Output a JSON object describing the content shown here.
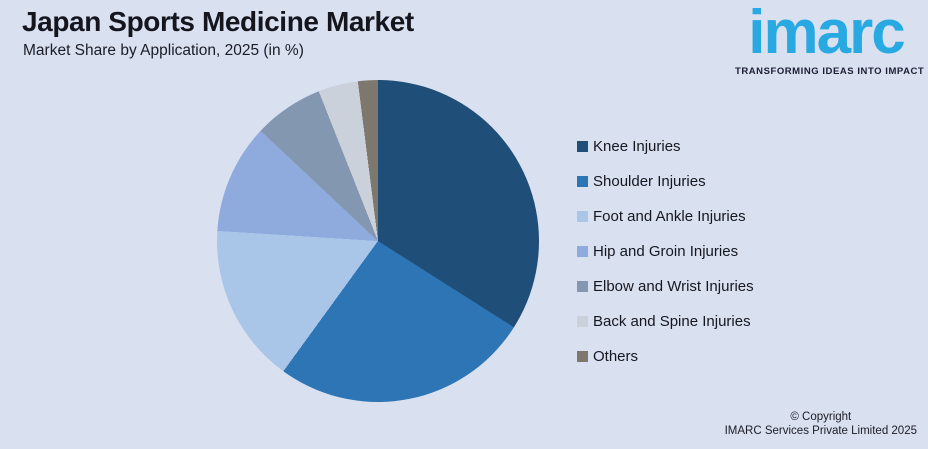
{
  "header": {
    "title": "Japan Sports Medicine Market",
    "subtitle": "Market Share by Application, 2025 (in %)"
  },
  "logo": {
    "wordmark": "imarc",
    "tagline": "TRANSFORMING IDEAS INTO IMPACT",
    "brand_color": "#29A9E1",
    "tagline_color": "#1C1D33"
  },
  "copyright": {
    "line1": "© Copyright",
    "line2": "IMARC Services Private Limited 2025"
  },
  "page_colors": {
    "background": "#D9E1F1",
    "title_text": "#14151D",
    "legend_text": "#16171F"
  },
  "chart_data": {
    "type": "pie",
    "title": "Japan Sports Medicine Market",
    "subtitle": "Market Share by Application, 2025 (in %)",
    "unit": "%",
    "start_angle_deg": 0,
    "direction": "clockwise",
    "legend_position": "right",
    "grid": false,
    "data_labels_shown": false,
    "labels": [
      "Knee Injuries",
      "Shoulder Injuries",
      "Foot and Ankle Injuries",
      "Hip and Groin Injuries",
      "Elbow and Wrist Injuries",
      "Back and Spine Injuries",
      "Others"
    ],
    "values": [
      34,
      26,
      16,
      11,
      7,
      4,
      2
    ],
    "colors": [
      "#1F4E79",
      "#2E75B6",
      "#A9C6E8",
      "#8FAADC",
      "#8497B0",
      "#CBD1DB",
      "#7E776E"
    ]
  }
}
